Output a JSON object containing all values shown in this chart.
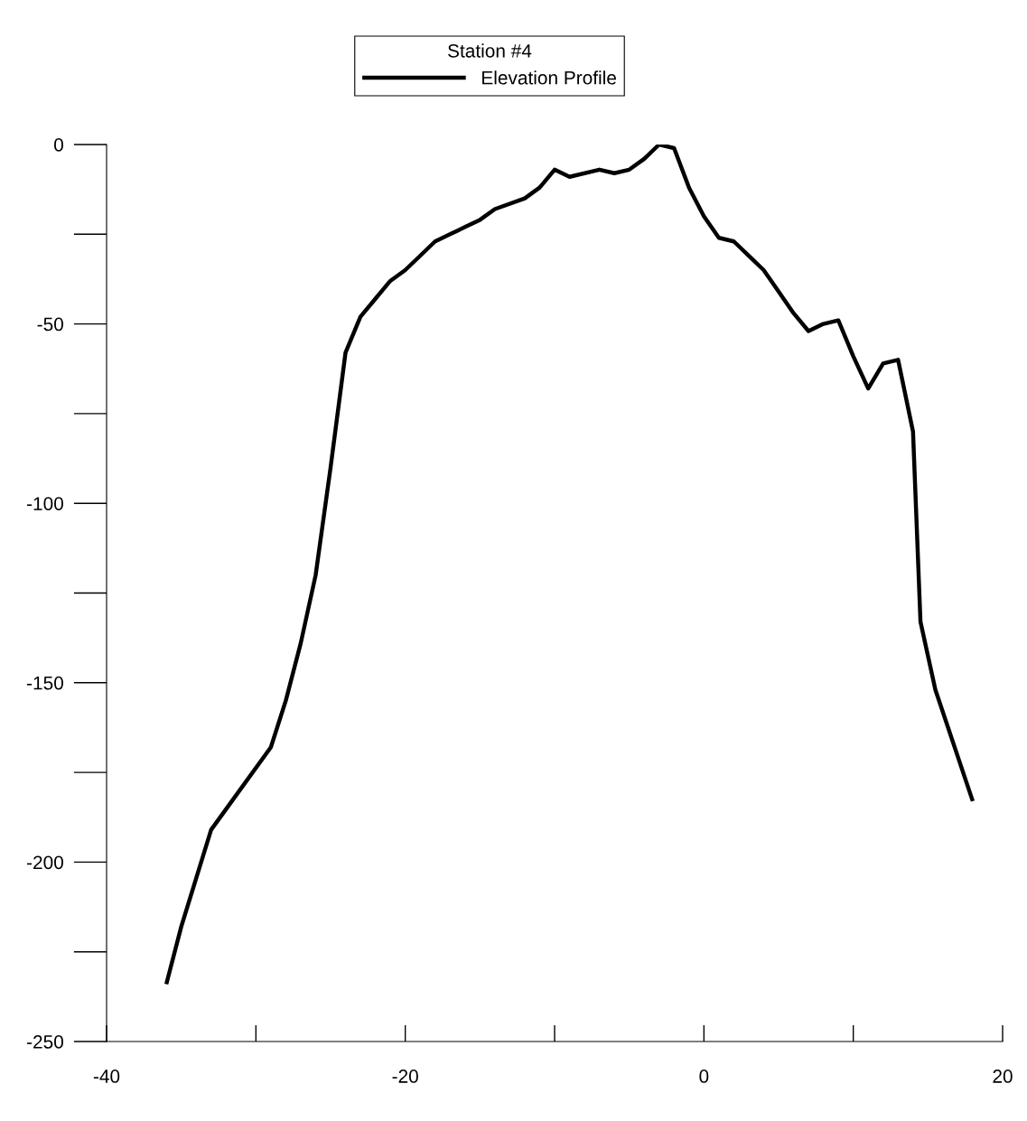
{
  "chart_data": {
    "type": "line",
    "legend_title": "Station #4",
    "series": [
      {
        "name": "Elevation Profile",
        "color": "#000000",
        "x": [
          -36,
          -35,
          -33,
          -29,
          -28,
          -27,
          -26,
          -25,
          -24,
          -23,
          -22,
          -21,
          -20,
          -18,
          -17,
          -16,
          -15,
          -14,
          -12,
          -11,
          -10,
          -9,
          -7,
          -6,
          -5,
          -4,
          -3,
          -2,
          -1,
          0,
          1,
          2,
          3,
          4,
          5,
          6,
          7,
          8,
          9,
          10,
          11,
          12,
          13,
          14,
          14.5,
          15.5,
          18
        ],
        "values": [
          -234,
          -218,
          -191,
          -168,
          -155,
          -139,
          -120,
          -90,
          -58,
          -48,
          -43,
          -38,
          -35,
          -27,
          -25,
          -23,
          -21,
          -18,
          -15,
          -12,
          -7,
          -9,
          -7,
          -8,
          -7,
          -4,
          0,
          -1,
          -12,
          -20,
          -26,
          -27,
          -31,
          -35,
          -41,
          -47,
          -52,
          -50,
          -49,
          -59,
          -68,
          -61,
          -60,
          -80,
          -133,
          -152,
          -183
        ]
      }
    ],
    "xlim": [
      -40,
      20
    ],
    "xticks": [
      -40,
      -20,
      0,
      20
    ],
    "ylim": [
      -250,
      0
    ],
    "yticks": [
      -250,
      -200,
      -150,
      -100,
      -50,
      0
    ],
    "grid": false,
    "legend": "top",
    "marker": "none",
    "line_style": "solid"
  }
}
